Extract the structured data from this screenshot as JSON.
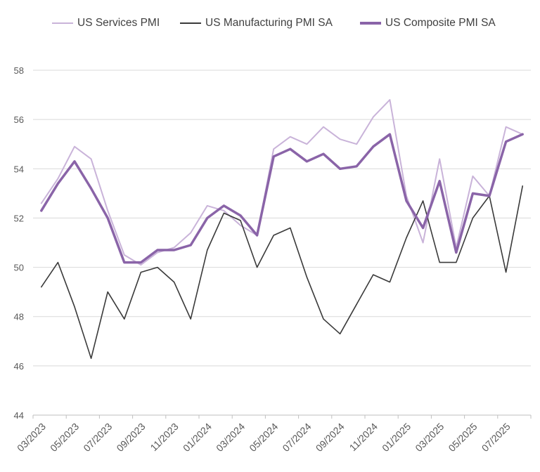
{
  "chart_data": {
    "type": "line",
    "title": "",
    "xlabel": "",
    "ylabel": "",
    "ylim": [
      44,
      58
    ],
    "yticks": [
      44,
      46,
      48,
      50,
      52,
      54,
      56,
      58
    ],
    "grid": "horizontal",
    "legend_position": "top",
    "x": [
      "03/2023",
      "04/2023",
      "05/2023",
      "06/2023",
      "07/2023",
      "08/2023",
      "09/2023",
      "10/2023",
      "11/2023",
      "12/2023",
      "01/2024",
      "02/2024",
      "03/2024",
      "04/2024",
      "05/2024",
      "06/2024",
      "07/2024",
      "08/2024",
      "09/2024",
      "10/2024",
      "11/2024",
      "12/2024",
      "01/2025",
      "02/2025",
      "03/2025",
      "04/2025",
      "05/2025",
      "06/2025",
      "07/2025",
      "08/2025"
    ],
    "xtick_labels": [
      "03/2023",
      "05/2023",
      "07/2023",
      "09/2023",
      "11/2023",
      "01/2024",
      "03/2024",
      "05/2024",
      "07/2024",
      "09/2024",
      "11/2024",
      "01/2025",
      "03/2025",
      "05/2025",
      "07/2025"
    ],
    "series": [
      {
        "name": "US Services PMI",
        "color": "#c9b3d9",
        "values": [
          52.6,
          53.6,
          54.9,
          54.4,
          52.3,
          50.5,
          50.1,
          50.6,
          50.8,
          51.4,
          52.5,
          52.3,
          51.7,
          51.3,
          54.8,
          55.3,
          55.0,
          55.7,
          55.2,
          55.0,
          56.1,
          56.8,
          52.9,
          51.0,
          54.4,
          50.8,
          53.7,
          52.9,
          55.7,
          55.4
        ]
      },
      {
        "name": "US Manufacturing PMI SA",
        "color": "#3a3a3a",
        "values": [
          49.2,
          50.2,
          48.4,
          46.3,
          49.0,
          47.9,
          49.8,
          50.0,
          49.4,
          47.9,
          50.7,
          52.2,
          51.9,
          50.0,
          51.3,
          51.6,
          49.6,
          47.9,
          47.3,
          48.5,
          49.7,
          49.4,
          51.2,
          52.7,
          50.2,
          50.2,
          52.0,
          52.9,
          49.8,
          53.3
        ]
      },
      {
        "name": "US Composite PMI SA",
        "color": "#8a64a8",
        "values": [
          52.3,
          53.4,
          54.3,
          53.2,
          52.0,
          50.2,
          50.2,
          50.7,
          50.7,
          50.9,
          52.0,
          52.5,
          52.1,
          51.3,
          54.5,
          54.8,
          54.3,
          54.6,
          54.0,
          54.1,
          54.9,
          55.4,
          52.7,
          51.6,
          53.5,
          50.6,
          53.0,
          52.9,
          55.1,
          55.4
        ]
      }
    ]
  }
}
